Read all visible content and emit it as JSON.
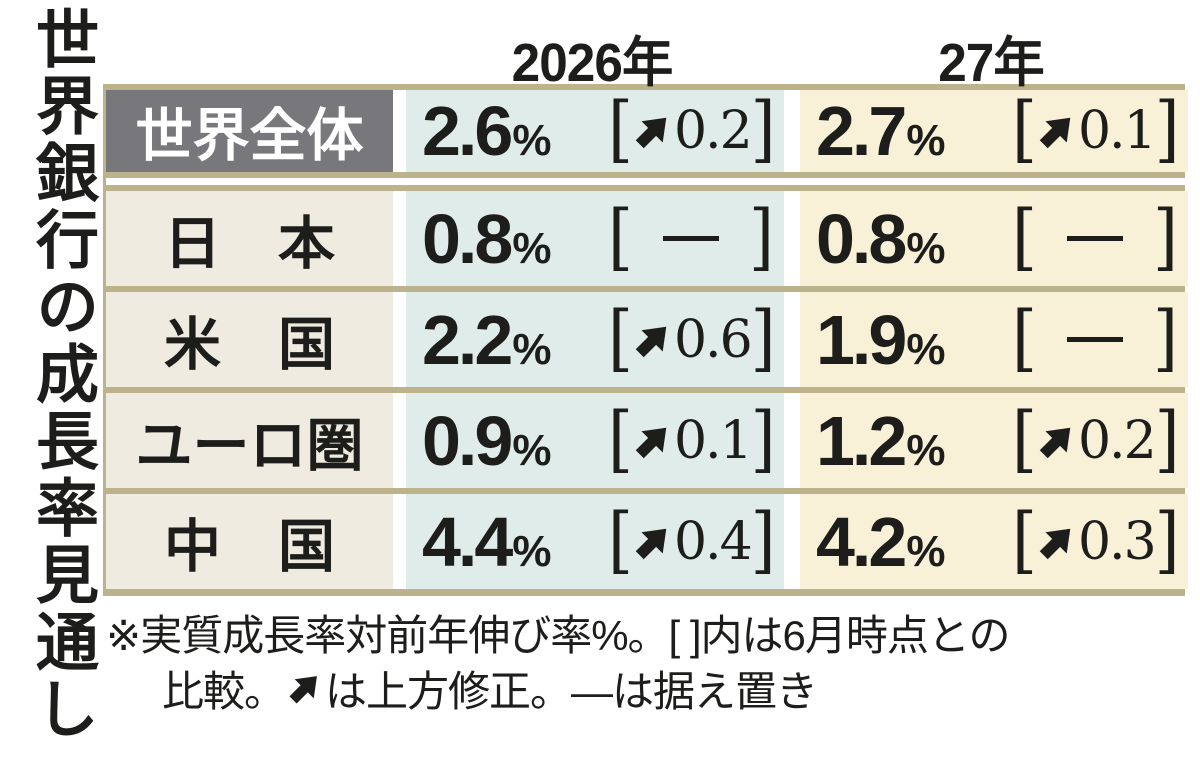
{
  "title": "世界銀行の成長率見通し",
  "columns": [
    "2026年",
    "27年"
  ],
  "percent_sign": "%",
  "bracket_open": "[",
  "bracket_close": "]",
  "rows": [
    {
      "label": "世界全体",
      "emphasis": true,
      "cells": [
        {
          "value": "2.6",
          "dir": "up",
          "delta": "0.2"
        },
        {
          "value": "2.7",
          "dir": "up",
          "delta": "0.1"
        }
      ]
    },
    {
      "label": "日　本",
      "emphasis": false,
      "cells": [
        {
          "value": "0.8",
          "dir": "flat"
        },
        {
          "value": "0.8",
          "dir": "flat"
        }
      ]
    },
    {
      "label": "米　国",
      "emphasis": false,
      "cells": [
        {
          "value": "2.2",
          "dir": "up",
          "delta": "0.6"
        },
        {
          "value": "1.9",
          "dir": "flat"
        }
      ]
    },
    {
      "label": "ユーロ圏",
      "emphasis": false,
      "cells": [
        {
          "value": "0.9",
          "dir": "up",
          "delta": "0.1"
        },
        {
          "value": "1.2",
          "dir": "up",
          "delta": "0.2"
        }
      ]
    },
    {
      "label": "中　国",
      "emphasis": false,
      "cells": [
        {
          "value": "4.4",
          "dir": "up",
          "delta": "0.4"
        },
        {
          "value": "4.2",
          "dir": "up",
          "delta": "0.3"
        }
      ]
    }
  ],
  "footnote": {
    "line1": "※実質成長率対前年伸び率%。[ ]内は6月時点との",
    "line2_before_arrow": "比較。",
    "line2_after_arrow": "は上方修正。—は据え置き"
  },
  "icons": {
    "up_arrow": "ne-arrow-icon",
    "flat": "dash-icon"
  },
  "colors": {
    "col_2026_bg": "#dfece9",
    "col_27_bg": "#f8f1d8",
    "row_label_bg": "#efebe0",
    "world_label_bg": "#78777b",
    "separator": "#bcb28c",
    "text": "#1d1d1b"
  },
  "chart_data": {
    "type": "table",
    "title": "世界銀行の成長率見通し",
    "columns": [
      "2026年",
      "27年"
    ],
    "unit": "%",
    "rows": [
      {
        "label": "世界全体",
        "values_pct": [
          2.6,
          2.7
        ],
        "revision_vs_june": [
          0.2,
          0.1
        ]
      },
      {
        "label": "日本",
        "values_pct": [
          0.8,
          0.8
        ],
        "revision_vs_june": [
          null,
          null
        ]
      },
      {
        "label": "米国",
        "values_pct": [
          2.2,
          1.9
        ],
        "revision_vs_june": [
          0.6,
          null
        ]
      },
      {
        "label": "ユーロ圏",
        "values_pct": [
          0.9,
          1.2
        ],
        "revision_vs_june": [
          0.1,
          0.2
        ]
      },
      {
        "label": "中国",
        "values_pct": [
          4.4,
          4.2
        ],
        "revision_vs_june": [
          0.4,
          0.3
        ]
      }
    ],
    "note": "実質成長率対前年伸び率%。[ ]内は6月時点との比較。↗は上方修正。—は据え置き"
  }
}
